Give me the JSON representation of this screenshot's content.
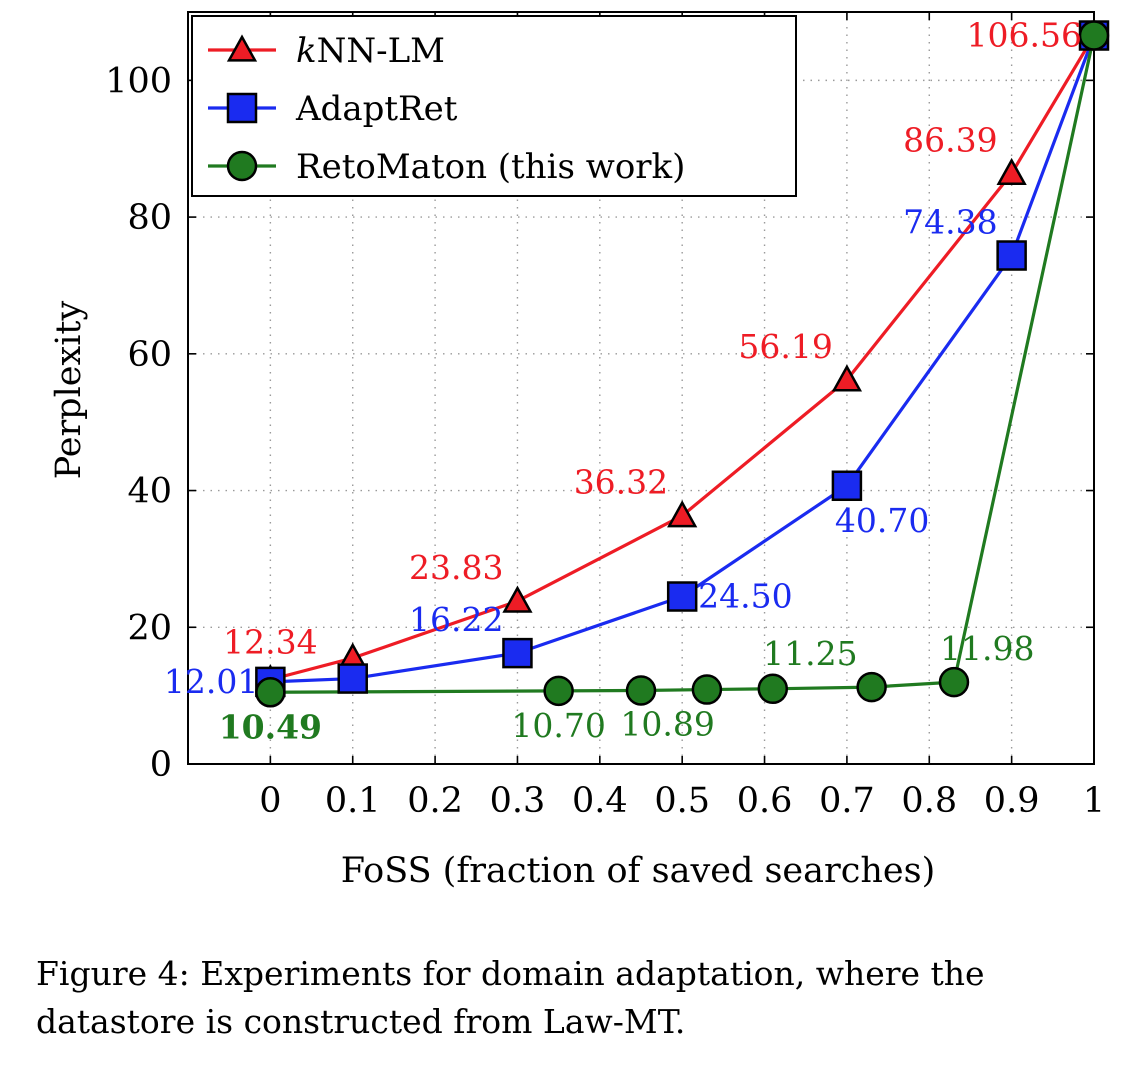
{
  "chart_data": {
    "type": "line",
    "xlabel": "FoSS (fraction of saved searches)",
    "ylabel": "Perplexity",
    "xlim": [
      -0.1,
      1.0
    ],
    "ylim": [
      0,
      110
    ],
    "xticks": [
      0,
      0.1,
      0.2,
      0.3,
      0.4,
      0.5,
      0.6,
      0.7,
      0.8,
      0.9,
      1
    ],
    "xtick_labels": [
      "0",
      "0.1",
      "0.2",
      "0.3",
      "0.4",
      "0.5",
      "0.6",
      "0.7",
      "0.8",
      "0.9",
      "1"
    ],
    "yticks": [
      0,
      20,
      40,
      60,
      80,
      100
    ],
    "ytick_labels": [
      "0",
      "20",
      "40",
      "60",
      "80",
      "100"
    ],
    "grid": true,
    "legend_position": "top-left",
    "series": [
      {
        "name": "kNN-LM",
        "legend_italic": "k",
        "legend_rest": "NN-LM",
        "color": "#ee1c25",
        "marker": "triangle",
        "x": [
          0,
          0.1,
          0.3,
          0.5,
          0.7,
          0.9,
          1.0
        ],
        "y": [
          12.34,
          15.5,
          23.83,
          36.32,
          56.19,
          86.39,
          106.56
        ]
      },
      {
        "name": "AdaptRet",
        "color": "#1a2bf0",
        "marker": "square",
        "x": [
          0,
          0.1,
          0.3,
          0.5,
          0.7,
          0.9,
          1.0
        ],
        "y": [
          12.01,
          12.5,
          16.22,
          24.5,
          40.7,
          74.38,
          106.56
        ]
      },
      {
        "name": "RetoMaton (this work)",
        "color": "#207a20",
        "marker": "circle",
        "x": [
          0,
          0.35,
          0.45,
          0.53,
          0.61,
          0.73,
          0.83,
          1.0
        ],
        "y": [
          10.49,
          10.7,
          10.75,
          10.89,
          11.0,
          11.25,
          11.98,
          106.56
        ]
      }
    ],
    "annotations": [
      {
        "text": "12.34",
        "series": 0,
        "x": 0,
        "y": 12.34,
        "pos": "above",
        "bold": false
      },
      {
        "text": "23.83",
        "series": 0,
        "x": 0.3,
        "y": 23.83,
        "pos": "above-left",
        "bold": false
      },
      {
        "text": "36.32",
        "series": 0,
        "x": 0.5,
        "y": 36.32,
        "pos": "above-left",
        "bold": false
      },
      {
        "text": "56.19",
        "series": 0,
        "x": 0.7,
        "y": 56.19,
        "pos": "above-left",
        "bold": false
      },
      {
        "text": "86.39",
        "series": 0,
        "x": 0.9,
        "y": 86.39,
        "pos": "above-left",
        "bold": false
      },
      {
        "text": "106.56",
        "series": 0,
        "x": 1.0,
        "y": 106.56,
        "pos": "left",
        "bold": false
      },
      {
        "text": "12.01",
        "series": 1,
        "x": 0,
        "y": 12.01,
        "pos": "left",
        "bold": false
      },
      {
        "text": "16.22",
        "series": 1,
        "x": 0.3,
        "y": 16.22,
        "pos": "above-left",
        "bold": false
      },
      {
        "text": "24.50",
        "series": 1,
        "x": 0.5,
        "y": 24.5,
        "pos": "right",
        "bold": false
      },
      {
        "text": "40.70",
        "series": 1,
        "x": 0.7,
        "y": 40.7,
        "pos": "below-right",
        "bold": false
      },
      {
        "text": "74.38",
        "series": 1,
        "x": 0.9,
        "y": 74.38,
        "pos": "above-left",
        "bold": false
      },
      {
        "text": "10.49",
        "series": 2,
        "x": 0,
        "y": 10.49,
        "pos": "below",
        "bold": true
      },
      {
        "text": "10.70",
        "series": 2,
        "x": 0.35,
        "y": 10.7,
        "pos": "below",
        "bold": false
      },
      {
        "text": "10.89",
        "series": 2,
        "x": 0.53,
        "y": 10.89,
        "pos": "below-left",
        "bold": false
      },
      {
        "text": "11.25",
        "series": 2,
        "x": 0.73,
        "y": 11.25,
        "pos": "above-left",
        "bold": false
      },
      {
        "text": "11.98",
        "series": 2,
        "x": 0.83,
        "y": 11.98,
        "pos": "above-right",
        "bold": false
      }
    ]
  },
  "caption": "Figure 4: Experiments for domain adaptation, where the datastore is constructed from Law-MT."
}
